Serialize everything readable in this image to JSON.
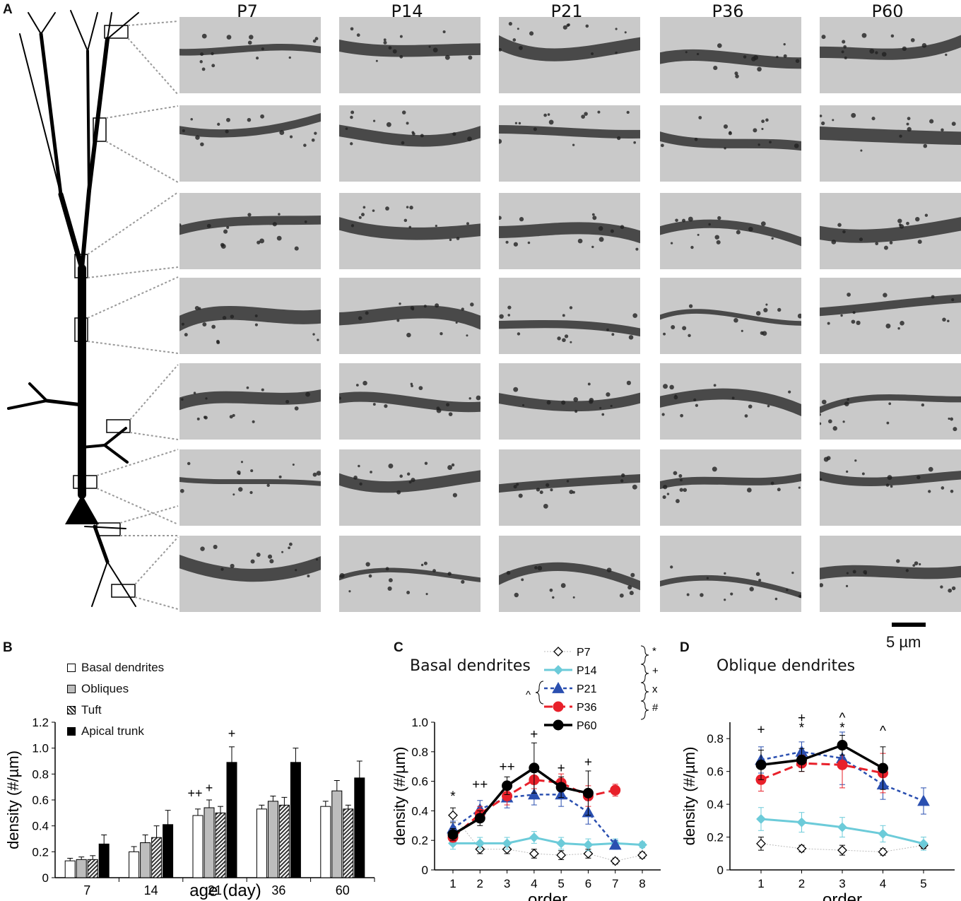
{
  "panels": {
    "A": "A",
    "B": "B",
    "C": "C",
    "D": "D"
  },
  "columns": [
    "P7",
    "P14",
    "P21",
    "P36",
    "P60"
  ],
  "scale_label": "5 µm",
  "panel_b": {
    "legend": [
      "Basal dendrites",
      "Obliques",
      "Tuft",
      "Apical trunk"
    ]
  },
  "chart_data": [
    {
      "panel": "B",
      "type": "bar",
      "title": "",
      "xlabel": "age (day)",
      "ylabel": "density (#/µm)",
      "ylim": [
        0,
        1.2
      ],
      "yticks": [
        "0",
        "0.2",
        "0.4",
        "0.6",
        "0.8",
        "1.0",
        "1.2"
      ],
      "categories": [
        "7",
        "14",
        "21",
        "36",
        "60"
      ],
      "series": [
        {
          "name": "Basal dendrites",
          "values": [
            0.13,
            0.2,
            0.48,
            0.53,
            0.55
          ],
          "errors": [
            0.02,
            0.04,
            0.05,
            0.03,
            0.04
          ]
        },
        {
          "name": "Obliques",
          "values": [
            0.14,
            0.27,
            0.54,
            0.59,
            0.67
          ],
          "errors": [
            0.02,
            0.06,
            0.06,
            0.04,
            0.08
          ]
        },
        {
          "name": "Tuft",
          "values": [
            0.14,
            0.31,
            0.5,
            0.56,
            0.53
          ],
          "errors": [
            0.03,
            0.09,
            0.05,
            0.06,
            0.03
          ]
        },
        {
          "name": "Apical trunk",
          "values": [
            0.26,
            0.41,
            0.89,
            0.89,
            0.77
          ],
          "errors": [
            0.07,
            0.11,
            0.12,
            0.11,
            0.13
          ]
        }
      ],
      "annotations": [
        {
          "category": "21",
          "text": "++",
          "y": 0.62
        },
        {
          "category": "21",
          "text": "+",
          "y": 0.66
        },
        {
          "category": "21",
          "text": "+",
          "y": 1.08
        }
      ]
    },
    {
      "panel": "C",
      "type": "line",
      "title": "Basal dendrites",
      "xlabel": "order",
      "ylabel": "density (#/µm)",
      "ylim": [
        0,
        1.0
      ],
      "xticks": [
        "1",
        "2",
        "3",
        "4",
        "5",
        "6",
        "7",
        "8"
      ],
      "yticks": [
        "0",
        "0.2",
        "0.4",
        "0.6",
        "0.8",
        "1.0"
      ],
      "series": [
        {
          "name": "P7",
          "x": [
            1,
            2,
            3,
            4,
            5,
            6,
            7,
            8
          ],
          "values": [
            0.37,
            0.14,
            0.14,
            0.11,
            0.1,
            0.11,
            0.06,
            0.1
          ],
          "errors": [
            0.05,
            0.03,
            0.03,
            0.03,
            0.03,
            0.03,
            0.02,
            0.02
          ]
        },
        {
          "name": "P14",
          "x": [
            1,
            2,
            3,
            4,
            5,
            6,
            7,
            8
          ],
          "values": [
            0.18,
            0.18,
            0.18,
            0.22,
            0.18,
            0.17,
            0.18,
            0.17
          ],
          "errors": [
            0.04,
            0.04,
            0.04,
            0.04,
            0.04,
            0.04,
            0.03,
            0.02
          ]
        },
        {
          "name": "P21",
          "x": [
            1,
            2,
            3,
            4,
            5,
            6,
            7
          ],
          "values": [
            0.28,
            0.41,
            0.49,
            0.51,
            0.51,
            0.39,
            0.17
          ],
          "errors": [
            0.05,
            0.06,
            0.07,
            0.07,
            0.08,
            0.08,
            0.03
          ]
        },
        {
          "name": "P36",
          "x": [
            1,
            2,
            3,
            4,
            5,
            6,
            7
          ],
          "values": [
            0.22,
            0.38,
            0.5,
            0.61,
            0.59,
            0.5,
            0.54
          ],
          "errors": [
            0.03,
            0.05,
            0.06,
            0.06,
            0.06,
            0.07,
            0.04
          ]
        },
        {
          "name": "P60",
          "x": [
            1,
            2,
            3,
            4,
            5,
            6
          ],
          "values": [
            0.24,
            0.35,
            0.57,
            0.69,
            0.56,
            0.52
          ],
          "errors": [
            0.04,
            0.05,
            0.06,
            0.17,
            0.07,
            0.15
          ]
        }
      ],
      "legend_brackets": [
        "*",
        "+",
        "x",
        "#",
        "^"
      ],
      "annotations": [
        {
          "x": 1,
          "text": "*",
          "y": 0.47
        },
        {
          "x": 2,
          "text": "++",
          "y": 0.55
        },
        {
          "x": 3,
          "text": "++",
          "y": 0.67
        },
        {
          "x": 4,
          "text": "+",
          "y": 0.89
        },
        {
          "x": 5,
          "text": "+",
          "y": 0.66
        },
        {
          "x": 6,
          "text": "+",
          "y": 0.7
        }
      ]
    },
    {
      "panel": "D",
      "type": "line",
      "title": "Oblique dendrites",
      "xlabel": "order",
      "ylabel": "density (#/µm)",
      "ylim": [
        0,
        0.9
      ],
      "xticks": [
        "1",
        "2",
        "3",
        "4",
        "5"
      ],
      "yticks": [
        "0",
        "0.2",
        "0.4",
        "0.6",
        "0.8"
      ],
      "series": [
        {
          "name": "P7",
          "x": [
            1,
            2,
            3,
            4,
            5
          ],
          "values": [
            0.16,
            0.13,
            0.12,
            0.11,
            0.15
          ],
          "errors": [
            0.04,
            0.02,
            0.03,
            0.02,
            0.02
          ]
        },
        {
          "name": "P14",
          "x": [
            1,
            2,
            3,
            4,
            5
          ],
          "values": [
            0.31,
            0.29,
            0.26,
            0.22,
            0.16
          ],
          "errors": [
            0.07,
            0.06,
            0.06,
            0.05,
            0.04
          ]
        },
        {
          "name": "P21",
          "x": [
            1,
            2,
            3,
            4,
            5
          ],
          "values": [
            0.67,
            0.72,
            0.68,
            0.52,
            0.42
          ],
          "errors": [
            0.08,
            0.06,
            0.16,
            0.09,
            0.08
          ]
        },
        {
          "name": "P36",
          "x": [
            1,
            2,
            3,
            4
          ],
          "values": [
            0.55,
            0.65,
            0.64,
            0.59
          ],
          "errors": [
            0.07,
            0.05,
            0.14,
            0.12
          ]
        },
        {
          "name": "P60",
          "x": [
            1,
            2,
            3,
            4
          ],
          "values": [
            0.64,
            0.67,
            0.76,
            0.62
          ],
          "errors": [
            0.09,
            0.07,
            0.06,
            0.13
          ]
        }
      ],
      "annotations": [
        {
          "x": 1,
          "text": "+",
          "y": 0.83
        },
        {
          "x": 2,
          "text": "+",
          "y": 0.9
        },
        {
          "x": 2,
          "text": "*",
          "y": 0.84
        },
        {
          "x": 3,
          "text": "^",
          "y": 0.9
        },
        {
          "x": 3,
          "text": "*",
          "y": 0.84
        },
        {
          "x": 4,
          "text": "^",
          "y": 0.82
        }
      ]
    }
  ]
}
